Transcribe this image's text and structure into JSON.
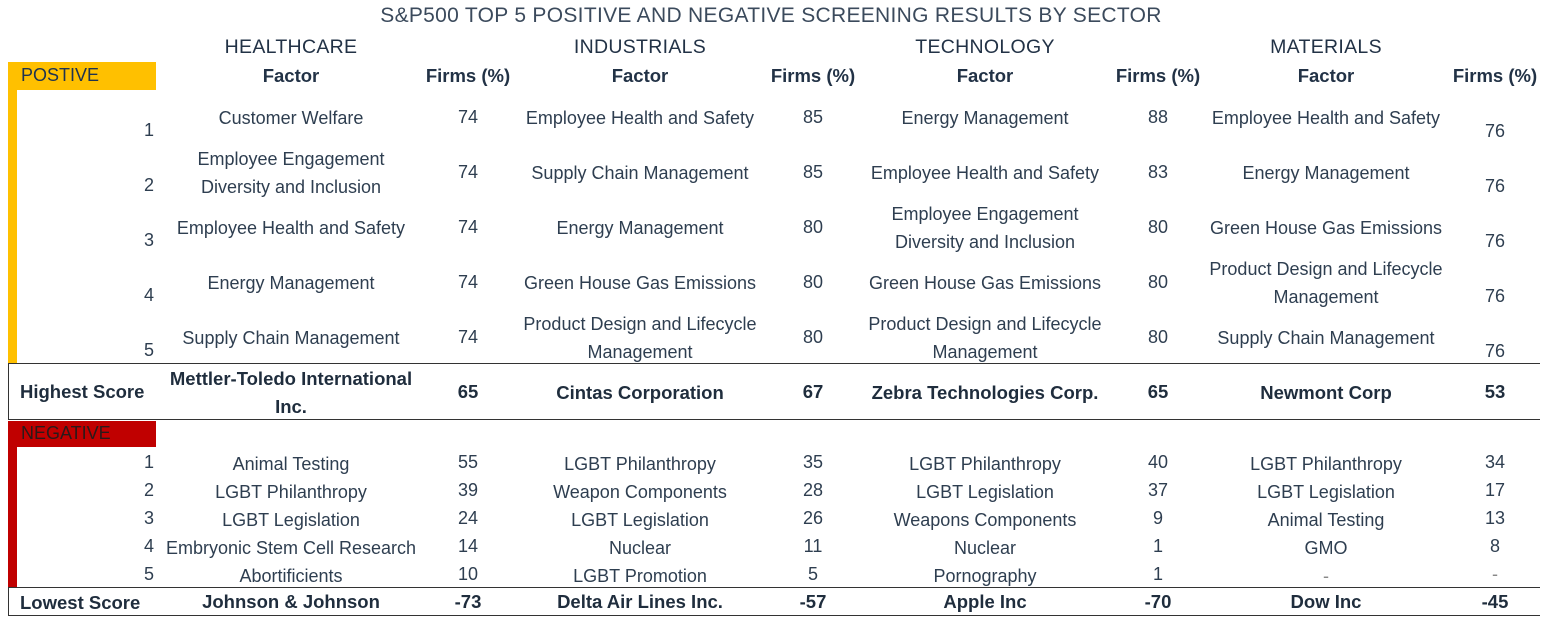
{
  "title": "S&P500 TOP 5 POSITIVE AND NEGATIVE SCREENING RESULTS BY SECTOR",
  "labels": {
    "factor": "Factor",
    "firms_pct": "Firms (%)",
    "positive": "POSTIVE",
    "negative": "NEGATIVE",
    "highest": "Highest Score",
    "lowest": "Lowest Score"
  },
  "colors": {
    "positive": "#FFC000",
    "negative": "#C00000"
  },
  "sectors": [
    {
      "name": "HEALTHCARE",
      "positive": [
        {
          "rank": "1",
          "factor": "Customer Welfare",
          "pct": "74"
        },
        {
          "rank": "2",
          "factor": "Employee Engagement Diversity and Inclusion",
          "pct": "74"
        },
        {
          "rank": "3",
          "factor": "Employee Health and Safety",
          "pct": "74"
        },
        {
          "rank": "4",
          "factor": "Energy Management",
          "pct": "74"
        },
        {
          "rank": "5",
          "factor": "Supply Chain Management",
          "pct": "74"
        }
      ],
      "highest": {
        "name": "Mettler-Toledo International Inc.",
        "score": "65"
      },
      "negative": [
        {
          "rank": "1",
          "factor": "Animal Testing",
          "pct": "55"
        },
        {
          "rank": "2",
          "factor": "LGBT Philanthropy",
          "pct": "39"
        },
        {
          "rank": "3",
          "factor": "LGBT Legislation",
          "pct": "24"
        },
        {
          "rank": "4",
          "factor": "Embryonic Stem Cell Research",
          "pct": "14"
        },
        {
          "rank": "5",
          "factor": "Abortificients",
          "pct": "10"
        }
      ],
      "lowest": {
        "name": "Johnson & Johnson",
        "score": "-73"
      }
    },
    {
      "name": "INDUSTRIALS",
      "positive": [
        {
          "factor": "Employee Health and Safety",
          "pct": "85"
        },
        {
          "factor": "Supply Chain Management",
          "pct": "85"
        },
        {
          "factor": "Energy Management",
          "pct": "80"
        },
        {
          "factor": "Green House Gas Emissions",
          "pct": "80"
        },
        {
          "factor": "Product Design and Lifecycle Management",
          "pct": "80"
        }
      ],
      "highest": {
        "name": "Cintas Corporation",
        "score": "67"
      },
      "negative": [
        {
          "factor": "LGBT Philanthropy",
          "pct": "35"
        },
        {
          "factor": "Weapon Components",
          "pct": "28"
        },
        {
          "factor": "LGBT Legislation",
          "pct": "26"
        },
        {
          "factor": "Nuclear",
          "pct": "11"
        },
        {
          "factor": "LGBT Promotion",
          "pct": "5"
        }
      ],
      "lowest": {
        "name": "Delta Air Lines Inc.",
        "score": "-57"
      }
    },
    {
      "name": "TECHNOLOGY",
      "positive": [
        {
          "factor": "Energy Management",
          "pct": "88"
        },
        {
          "factor": "Employee Health and Safety",
          "pct": "83"
        },
        {
          "factor": "Employee Engagement Diversity and Inclusion",
          "pct": "80"
        },
        {
          "factor": "Green House Gas Emissions",
          "pct": "80"
        },
        {
          "factor": "Product Design and Lifecycle Management",
          "pct": "80"
        }
      ],
      "highest": {
        "name": "Zebra Technologies Corp.",
        "score": "65"
      },
      "negative": [
        {
          "factor": "LGBT Philanthropy",
          "pct": "40"
        },
        {
          "factor": "LGBT Legislation",
          "pct": "37"
        },
        {
          "factor": "Weapons Components",
          "pct": "9"
        },
        {
          "factor": "Nuclear",
          "pct": "1"
        },
        {
          "factor": "Pornography",
          "pct": "1"
        }
      ],
      "lowest": {
        "name": "Apple Inc",
        "score": "-70"
      }
    },
    {
      "name": "MATERIALS",
      "positive": [
        {
          "factor": "Employee Health and Safety",
          "pct": "76"
        },
        {
          "factor": "Energy Management",
          "pct": "76"
        },
        {
          "factor": "Green House Gas Emissions",
          "pct": "76"
        },
        {
          "factor": "Product Design and Lifecycle Management",
          "pct": "76"
        },
        {
          "factor": "Supply Chain Management",
          "pct": "76"
        }
      ],
      "highest": {
        "name": "Newmont Corp",
        "score": "53"
      },
      "negative": [
        {
          "factor": "LGBT Philanthropy",
          "pct": "34"
        },
        {
          "factor": "LGBT Legislation",
          "pct": "17"
        },
        {
          "factor": "Animal Testing",
          "pct": "13"
        },
        {
          "factor": "GMO",
          "pct": "8"
        },
        {
          "factor": "-",
          "pct": "-"
        }
      ],
      "lowest": {
        "name": "Dow Inc",
        "score": "-45"
      }
    }
  ]
}
